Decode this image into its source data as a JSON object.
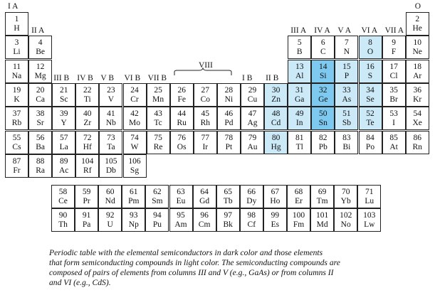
{
  "group_labels": [
    {
      "text": "I A",
      "col": 1,
      "row": 0
    },
    {
      "text": "II A",
      "col": 2,
      "row": 1
    },
    {
      "text": "III A",
      "col": 13,
      "row": 1
    },
    {
      "text": "IV A",
      "col": 14,
      "row": 1
    },
    {
      "text": "V A",
      "col": 15,
      "row": 1
    },
    {
      "text": "VI A",
      "col": 16,
      "row": 1
    },
    {
      "text": "VII A",
      "col": 17,
      "row": 1
    },
    {
      "text": "O",
      "col": 18,
      "row": 0
    },
    {
      "text": "III B",
      "col": 3,
      "row": 3
    },
    {
      "text": "IV B",
      "col": 4,
      "row": 3
    },
    {
      "text": "V B",
      "col": 5,
      "row": 3
    },
    {
      "text": "VI B",
      "col": 6,
      "row": 3
    },
    {
      "text": "VII B",
      "col": 7,
      "row": 3
    },
    {
      "text": "I B",
      "col": 11,
      "row": 3
    },
    {
      "text": "II B",
      "col": 12,
      "row": 3
    },
    {
      "text": "VIII",
      "col": 9,
      "row": 2
    }
  ],
  "elements": [
    {
      "n": "1",
      "s": "H",
      "col": 1,
      "row": 1,
      "tone": ""
    },
    {
      "n": "2",
      "s": "He",
      "col": 18,
      "row": 1,
      "tone": ""
    },
    {
      "n": "3",
      "s": "Li",
      "col": 1,
      "row": 2,
      "tone": ""
    },
    {
      "n": "4",
      "s": "Be",
      "col": 2,
      "row": 2,
      "tone": ""
    },
    {
      "n": "5",
      "s": "B",
      "col": 13,
      "row": 2,
      "tone": ""
    },
    {
      "n": "6",
      "s": "C",
      "col": 14,
      "row": 2,
      "tone": ""
    },
    {
      "n": "7",
      "s": "N",
      "col": 15,
      "row": 2,
      "tone": ""
    },
    {
      "n": "8",
      "s": "O",
      "col": 16,
      "row": 2,
      "tone": "light"
    },
    {
      "n": "9",
      "s": "F",
      "col": 17,
      "row": 2,
      "tone": ""
    },
    {
      "n": "10",
      "s": "Ne",
      "col": 18,
      "row": 2,
      "tone": ""
    },
    {
      "n": "11",
      "s": "Na",
      "col": 1,
      "row": 3,
      "tone": ""
    },
    {
      "n": "12",
      "s": "Mg",
      "col": 2,
      "row": 3,
      "tone": ""
    },
    {
      "n": "13",
      "s": "Al",
      "col": 13,
      "row": 3,
      "tone": "light"
    },
    {
      "n": "14",
      "s": "Si",
      "col": 14,
      "row": 3,
      "tone": "dark"
    },
    {
      "n": "15",
      "s": "P",
      "col": 15,
      "row": 3,
      "tone": "light"
    },
    {
      "n": "16",
      "s": "S",
      "col": 16,
      "row": 3,
      "tone": "light"
    },
    {
      "n": "17",
      "s": "Cl",
      "col": 17,
      "row": 3,
      "tone": ""
    },
    {
      "n": "18",
      "s": "Ar",
      "col": 18,
      "row": 3,
      "tone": ""
    },
    {
      "n": "19",
      "s": "K",
      "col": 1,
      "row": 4,
      "tone": ""
    },
    {
      "n": "20",
      "s": "Ca",
      "col": 2,
      "row": 4,
      "tone": ""
    },
    {
      "n": "21",
      "s": "Sc",
      "col": 3,
      "row": 4,
      "tone": ""
    },
    {
      "n": "22",
      "s": "Ti",
      "col": 4,
      "row": 4,
      "tone": ""
    },
    {
      "n": "23",
      "s": "V",
      "col": 5,
      "row": 4,
      "tone": ""
    },
    {
      "n": "24",
      "s": "Cr",
      "col": 6,
      "row": 4,
      "tone": ""
    },
    {
      "n": "25",
      "s": "Mn",
      "col": 7,
      "row": 4,
      "tone": ""
    },
    {
      "n": "26",
      "s": "Fe",
      "col": 8,
      "row": 4,
      "tone": ""
    },
    {
      "n": "27",
      "s": "Co",
      "col": 9,
      "row": 4,
      "tone": ""
    },
    {
      "n": "28",
      "s": "Ni",
      "col": 10,
      "row": 4,
      "tone": ""
    },
    {
      "n": "29",
      "s": "Cu",
      "col": 11,
      "row": 4,
      "tone": ""
    },
    {
      "n": "30",
      "s": "Zn",
      "col": 12,
      "row": 4,
      "tone": "light"
    },
    {
      "n": "31",
      "s": "Ga",
      "col": 13,
      "row": 4,
      "tone": "light"
    },
    {
      "n": "32",
      "s": "Ge",
      "col": 14,
      "row": 4,
      "tone": "dark"
    },
    {
      "n": "33",
      "s": "As",
      "col": 15,
      "row": 4,
      "tone": "light"
    },
    {
      "n": "34",
      "s": "Se",
      "col": 16,
      "row": 4,
      "tone": "light"
    },
    {
      "n": "35",
      "s": "Br",
      "col": 17,
      "row": 4,
      "tone": ""
    },
    {
      "n": "36",
      "s": "Kr",
      "col": 18,
      "row": 4,
      "tone": ""
    },
    {
      "n": "37",
      "s": "Rb",
      "col": 1,
      "row": 5,
      "tone": ""
    },
    {
      "n": "38",
      "s": "Sr",
      "col": 2,
      "row": 5,
      "tone": ""
    },
    {
      "n": "39",
      "s": "Y",
      "col": 3,
      "row": 5,
      "tone": ""
    },
    {
      "n": "40",
      "s": "Zr",
      "col": 4,
      "row": 5,
      "tone": ""
    },
    {
      "n": "41",
      "s": "Nb",
      "col": 5,
      "row": 5,
      "tone": ""
    },
    {
      "n": "42",
      "s": "Mo",
      "col": 6,
      "row": 5,
      "tone": ""
    },
    {
      "n": "43",
      "s": "Tc",
      "col": 7,
      "row": 5,
      "tone": ""
    },
    {
      "n": "44",
      "s": "Ru",
      "col": 8,
      "row": 5,
      "tone": ""
    },
    {
      "n": "45",
      "s": "Rh",
      "col": 9,
      "row": 5,
      "tone": ""
    },
    {
      "n": "46",
      "s": "Pd",
      "col": 10,
      "row": 5,
      "tone": ""
    },
    {
      "n": "47",
      "s": "Ag",
      "col": 11,
      "row": 5,
      "tone": ""
    },
    {
      "n": "48",
      "s": "Cd",
      "col": 12,
      "row": 5,
      "tone": "light"
    },
    {
      "n": "49",
      "s": "In",
      "col": 13,
      "row": 5,
      "tone": "light"
    },
    {
      "n": "50",
      "s": "Sn",
      "col": 14,
      "row": 5,
      "tone": "dark"
    },
    {
      "n": "51",
      "s": "Sb",
      "col": 15,
      "row": 5,
      "tone": "light"
    },
    {
      "n": "52",
      "s": "Te",
      "col": 16,
      "row": 5,
      "tone": "light"
    },
    {
      "n": "53",
      "s": "I",
      "col": 17,
      "row": 5,
      "tone": ""
    },
    {
      "n": "54",
      "s": "Xe",
      "col": 18,
      "row": 5,
      "tone": ""
    },
    {
      "n": "55",
      "s": "Cs",
      "col": 1,
      "row": 6,
      "tone": ""
    },
    {
      "n": "56",
      "s": "Ba",
      "col": 2,
      "row": 6,
      "tone": ""
    },
    {
      "n": "57",
      "s": "La",
      "col": 3,
      "row": 6,
      "tone": ""
    },
    {
      "n": "72",
      "s": "Hf",
      "col": 4,
      "row": 6,
      "tone": ""
    },
    {
      "n": "73",
      "s": "Ta",
      "col": 5,
      "row": 6,
      "tone": ""
    },
    {
      "n": "74",
      "s": "W",
      "col": 6,
      "row": 6,
      "tone": ""
    },
    {
      "n": "75",
      "s": "Re",
      "col": 7,
      "row": 6,
      "tone": ""
    },
    {
      "n": "76",
      "s": "Os",
      "col": 8,
      "row": 6,
      "tone": ""
    },
    {
      "n": "77",
      "s": "Ir",
      "col": 9,
      "row": 6,
      "tone": ""
    },
    {
      "n": "78",
      "s": "Pt",
      "col": 10,
      "row": 6,
      "tone": ""
    },
    {
      "n": "79",
      "s": "Au",
      "col": 11,
      "row": 6,
      "tone": ""
    },
    {
      "n": "80",
      "s": "Hg",
      "col": 12,
      "row": 6,
      "tone": "light"
    },
    {
      "n": "81",
      "s": "Tl",
      "col": 13,
      "row": 6,
      "tone": ""
    },
    {
      "n": "82",
      "s": "Pb",
      "col": 14,
      "row": 6,
      "tone": ""
    },
    {
      "n": "83",
      "s": "Bi",
      "col": 15,
      "row": 6,
      "tone": ""
    },
    {
      "n": "84",
      "s": "Po",
      "col": 16,
      "row": 6,
      "tone": ""
    },
    {
      "n": "85",
      "s": "At",
      "col": 17,
      "row": 6,
      "tone": ""
    },
    {
      "n": "86",
      "s": "Rn",
      "col": 18,
      "row": 6,
      "tone": ""
    },
    {
      "n": "87",
      "s": "Fr",
      "col": 1,
      "row": 7,
      "tone": ""
    },
    {
      "n": "88",
      "s": "Ra",
      "col": 2,
      "row": 7,
      "tone": ""
    },
    {
      "n": "89",
      "s": "Ac",
      "col": 3,
      "row": 7,
      "tone": ""
    },
    {
      "n": "104",
      "s": "Rf",
      "col": 4,
      "row": 7,
      "tone": ""
    },
    {
      "n": "105",
      "s": "Db",
      "col": 5,
      "row": 7,
      "tone": ""
    },
    {
      "n": "106",
      "s": "Sg",
      "col": 6,
      "row": 7,
      "tone": ""
    }
  ],
  "f_block": [
    {
      "n": "58",
      "s": "Ce",
      "col": 1,
      "row": 1
    },
    {
      "n": "59",
      "s": "Pr",
      "col": 2,
      "row": 1
    },
    {
      "n": "60",
      "s": "Nd",
      "col": 3,
      "row": 1
    },
    {
      "n": "61",
      "s": "Pm",
      "col": 4,
      "row": 1
    },
    {
      "n": "62",
      "s": "Sm",
      "col": 5,
      "row": 1
    },
    {
      "n": "63",
      "s": "Eu",
      "col": 6,
      "row": 1
    },
    {
      "n": "64",
      "s": "Gd",
      "col": 7,
      "row": 1
    },
    {
      "n": "65",
      "s": "Tb",
      "col": 8,
      "row": 1
    },
    {
      "n": "66",
      "s": "Dy",
      "col": 9,
      "row": 1
    },
    {
      "n": "67",
      "s": "Ho",
      "col": 10,
      "row": 1
    },
    {
      "n": "68",
      "s": "Er",
      "col": 11,
      "row": 1
    },
    {
      "n": "69",
      "s": "Tm",
      "col": 12,
      "row": 1
    },
    {
      "n": "70",
      "s": "Yb",
      "col": 13,
      "row": 1
    },
    {
      "n": "71",
      "s": "Lu",
      "col": 14,
      "row": 1
    },
    {
      "n": "90",
      "s": "Th",
      "col": 1,
      "row": 2
    },
    {
      "n": "91",
      "s": "Pa",
      "col": 2,
      "row": 2
    },
    {
      "n": "92",
      "s": "U",
      "col": 3,
      "row": 2
    },
    {
      "n": "93",
      "s": "Np",
      "col": 4,
      "row": 2
    },
    {
      "n": "94",
      "s": "Pu",
      "col": 5,
      "row": 2
    },
    {
      "n": "95",
      "s": "Am",
      "col": 6,
      "row": 2
    },
    {
      "n": "96",
      "s": "Cm",
      "col": 7,
      "row": 2
    },
    {
      "n": "97",
      "s": "Bk",
      "col": 8,
      "row": 2
    },
    {
      "n": "98",
      "s": "Cf",
      "col": 9,
      "row": 2
    },
    {
      "n": "99",
      "s": "Es",
      "col": 10,
      "row": 2
    },
    {
      "n": "100",
      "s": "Fm",
      "col": 11,
      "row": 2
    },
    {
      "n": "101",
      "s": "Md",
      "col": 12,
      "row": 2
    },
    {
      "n": "102",
      "s": "No",
      "col": 13,
      "row": 2
    },
    {
      "n": "103",
      "s": "Lw",
      "col": 14,
      "row": 2
    }
  ],
  "caption": {
    "lines": [
      "Periodic table with the elemental semiconductors in dark color and those elements",
      "that form semiconducting compounds in light color. The semiconducting compounds are",
      "composed of pairs of elements from columns III and V (e.g., GaAs) or from columns II",
      "and VI (e.g., CdS)."
    ]
  },
  "colors": {
    "light": "#cce9f8",
    "dark": "#7dc9f0",
    "border": "#222222"
  }
}
